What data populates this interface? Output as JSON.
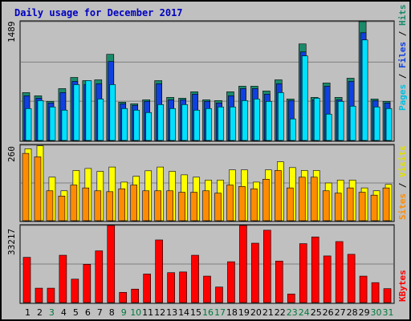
{
  "title": "Daily usage for December 2017",
  "colors": {
    "hits": "#1a8a6a",
    "files": "#1040e0",
    "pages": "#00e0ff",
    "visits": "#ffff00",
    "sites": "#ff8c00",
    "kbytes": "#ff0000",
    "weekday_label": "#000000",
    "weekend_label": "#007a3a"
  },
  "legends": {
    "top": [
      {
        "text": "Pages",
        "color": "#00c0e0"
      },
      {
        "text": " / ",
        "color": "#000000"
      },
      {
        "text": "Files",
        "color": "#1040e0"
      },
      {
        "text": " / ",
        "color": "#000000"
      },
      {
        "text": "Hits",
        "color": "#1a8a6a"
      }
    ],
    "middle": [
      {
        "text": "Sites",
        "color": "#ff8c00"
      },
      {
        "text": " / ",
        "color": "#000000"
      },
      {
        "text": "Visits",
        "color": "#e0e000"
      }
    ],
    "bottom": [
      {
        "text": "KBytes",
        "color": "#ff0000"
      }
    ]
  },
  "chart_data": [
    {
      "type": "bar",
      "panel": "hits",
      "y_max_label": "1489",
      "ylim": [
        0,
        1489
      ],
      "x": [
        1,
        2,
        3,
        4,
        5,
        6,
        7,
        8,
        9,
        10,
        11,
        12,
        13,
        14,
        15,
        16,
        17,
        18,
        19,
        20,
        21,
        22,
        23,
        24,
        25,
        26,
        27,
        28,
        29,
        30,
        31
      ],
      "series": [
        {
          "name": "Hits",
          "values": [
            600,
            560,
            490,
            650,
            790,
            750,
            760,
            1080,
            480,
            460,
            510,
            750,
            540,
            530,
            610,
            510,
            500,
            610,
            680,
            680,
            620,
            760,
            520,
            1210,
            540,
            720,
            540,
            780,
            1489,
            520,
            490
          ]
        },
        {
          "name": "Files",
          "values": [
            560,
            530,
            470,
            600,
            740,
            700,
            710,
            990,
            460,
            440,
            490,
            710,
            510,
            510,
            580,
            490,
            470,
            560,
            650,
            650,
            580,
            710,
            500,
            1110,
            510,
            680,
            510,
            740,
            1350,
            500,
            470
          ]
        },
        {
          "name": "Pages",
          "values": [
            400,
            500,
            420,
            380,
            700,
            750,
            520,
            700,
            400,
            380,
            350,
            450,
            400,
            450,
            380,
            400,
            420,
            420,
            500,
            520,
            490,
            600,
            270,
            1060,
            530,
            330,
            490,
            430,
            1260,
            420,
            400
          ]
        }
      ]
    },
    {
      "type": "bar",
      "panel": "visits",
      "y_max_label": "260",
      "ylim": [
        0,
        260
      ],
      "x": [
        1,
        2,
        3,
        4,
        5,
        6,
        7,
        8,
        9,
        10,
        11,
        12,
        13,
        14,
        15,
        16,
        17,
        18,
        19,
        20,
        21,
        22,
        23,
        24,
        25,
        26,
        27,
        28,
        29,
        30,
        31
      ],
      "series": [
        {
          "name": "Visits",
          "values": [
            248,
            258,
            150,
            103,
            173,
            180,
            170,
            185,
            133,
            153,
            172,
            185,
            170,
            158,
            150,
            140,
            140,
            175,
            175,
            133,
            175,
            203,
            183,
            173,
            173,
            130,
            140,
            140,
            113,
            103,
            125
          ]
        },
        {
          "name": "Sites",
          "values": [
            232,
            220,
            103,
            85,
            123,
            113,
            103,
            100,
            110,
            123,
            103,
            103,
            103,
            98,
            98,
            103,
            95,
            123,
            118,
            110,
            143,
            173,
            113,
            150,
            150,
            103,
            95,
            113,
            98,
            88,
            113
          ]
        }
      ]
    },
    {
      "type": "bar",
      "panel": "kbytes",
      "y_max_label": "33217",
      "ylim": [
        0,
        33217
      ],
      "x": [
        1,
        2,
        3,
        4,
        5,
        6,
        7,
        8,
        9,
        10,
        11,
        12,
        13,
        14,
        15,
        16,
        17,
        18,
        19,
        20,
        21,
        22,
        23,
        24,
        25,
        26,
        27,
        28,
        29,
        30,
        31
      ],
      "series": [
        {
          "name": "KBytes",
          "values": [
            19500,
            6200,
            6200,
            20400,
            10100,
            16500,
            22300,
            33217,
            4400,
            5800,
            12300,
            27000,
            12900,
            13200,
            20400,
            11400,
            6700,
            17600,
            33217,
            25600,
            31200,
            17900,
            3700,
            25400,
            28300,
            20100,
            26300,
            20800,
            11400,
            8600,
            6000
          ]
        }
      ]
    }
  ],
  "x_labels": [
    {
      "text": "1",
      "weekend": false
    },
    {
      "text": "2",
      "weekend": false
    },
    {
      "text": "3",
      "weekend": true
    },
    {
      "text": "4",
      "weekend": false
    },
    {
      "text": "5",
      "weekend": false
    },
    {
      "text": "6",
      "weekend": false
    },
    {
      "text": "7",
      "weekend": false
    },
    {
      "text": "8",
      "weekend": false
    },
    {
      "text": "9",
      "weekend": true
    },
    {
      "text": "10",
      "weekend": true
    },
    {
      "text": "11",
      "weekend": false
    },
    {
      "text": "12",
      "weekend": false
    },
    {
      "text": "13",
      "weekend": false
    },
    {
      "text": "14",
      "weekend": false
    },
    {
      "text": "15",
      "weekend": false
    },
    {
      "text": "16",
      "weekend": true
    },
    {
      "text": "17",
      "weekend": true
    },
    {
      "text": "18",
      "weekend": false
    },
    {
      "text": "19",
      "weekend": false
    },
    {
      "text": "20",
      "weekend": false
    },
    {
      "text": "21",
      "weekend": false
    },
    {
      "text": "22",
      "weekend": false
    },
    {
      "text": "23",
      "weekend": true
    },
    {
      "text": "24",
      "weekend": true
    },
    {
      "text": "25",
      "weekend": false
    },
    {
      "text": "26",
      "weekend": false
    },
    {
      "text": "27",
      "weekend": false
    },
    {
      "text": "28",
      "weekend": false
    },
    {
      "text": "29",
      "weekend": false
    },
    {
      "text": "30",
      "weekend": true
    },
    {
      "text": "31",
      "weekend": true
    }
  ]
}
